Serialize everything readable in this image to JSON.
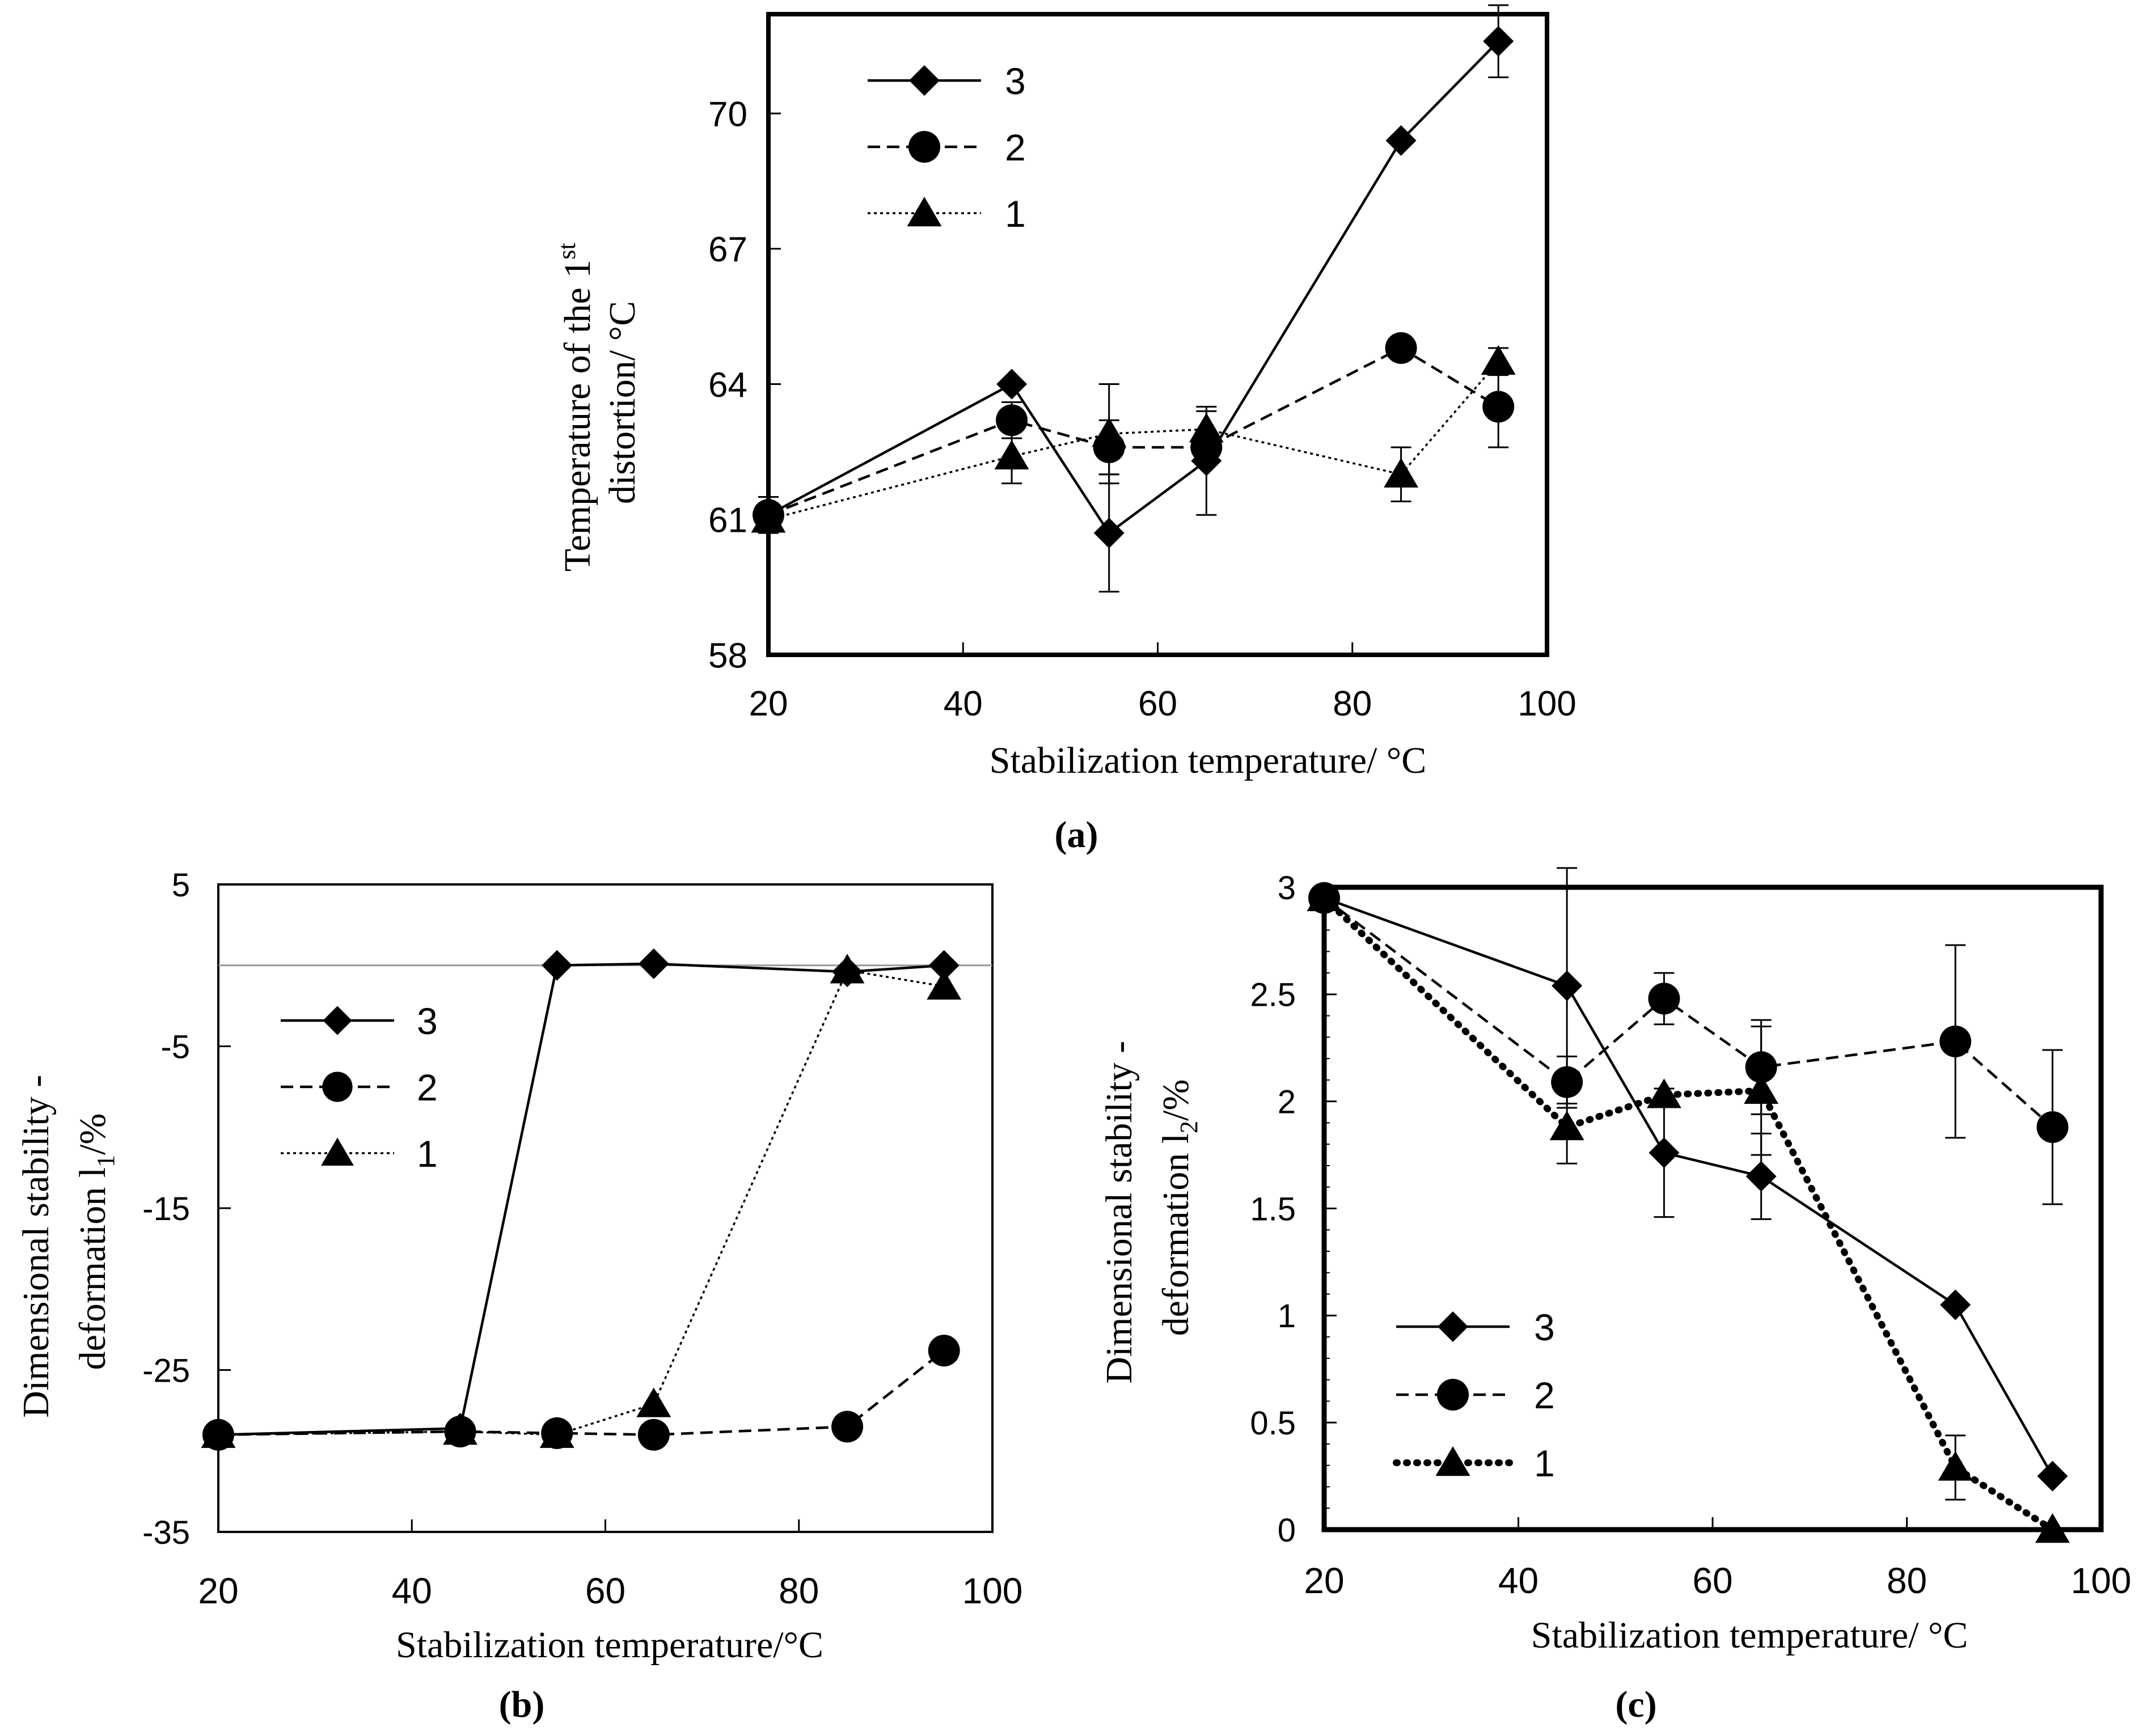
{
  "chart_data": [
    {
      "panel": "a",
      "type": "line",
      "caption": "(a)",
      "xlabel": "Stabilization temperature/ °C",
      "ylabel_lines": [
        "Temperature of the 1st",
        "distortion/ °C"
      ],
      "ylabel_line1": {
        "text": "Temperature of the 1",
        "sup": "st"
      },
      "ylabel_line2": "distortion/ °C",
      "xlim": [
        20,
        100
      ],
      "ylim": [
        58,
        72.2
      ],
      "xticks": [
        20,
        40,
        60,
        80,
        100
      ],
      "yticks": [
        58,
        61,
        64,
        67,
        70
      ],
      "tick_labels_x": [
        "20",
        "40",
        "60",
        "80",
        "100"
      ],
      "tick_labels_y": [
        "58",
        "61",
        "64",
        "67",
        "70"
      ],
      "legend": [
        "3",
        "2",
        "1"
      ],
      "legend_position": "top-left",
      "grid": false,
      "x": [
        20,
        45,
        55,
        65,
        85,
        95
      ],
      "series": [
        {
          "name": "3",
          "marker": "diamond",
          "line": "solid",
          "values": [
            61.1,
            64.0,
            60.7,
            62.3,
            69.4,
            71.6
          ],
          "err": [
            0.4,
            0,
            1.3,
            1.2,
            0,
            0.8
          ]
        },
        {
          "name": "2",
          "marker": "circle",
          "line": "dashed",
          "values": [
            61.1,
            63.2,
            62.6,
            62.6,
            64.8,
            63.5
          ],
          "err": [
            0,
            0.4,
            0.6,
            0,
            0,
            0.9
          ]
        },
        {
          "name": "1",
          "marker": "triangle",
          "line": "dotted",
          "values": [
            61.0,
            62.4,
            62.9,
            63.0,
            62.0,
            64.5
          ],
          "err": [
            0,
            0.6,
            1.1,
            0.4,
            0.6,
            0.3
          ]
        }
      ]
    },
    {
      "panel": "b",
      "type": "line",
      "caption": "(b)",
      "xlabel": "Stabilization temperature/°C",
      "ylabel_lines": [
        "Dimensional stability -",
        "deformation l1/%"
      ],
      "ylabel_line1": "Dimensional stability -",
      "ylabel_line2": {
        "text": "deformation l",
        "sub": "1",
        "tail": "/%"
      },
      "xlim": [
        20,
        100
      ],
      "ylim": [
        -35,
        5
      ],
      "xticks": [
        20,
        40,
        60,
        80,
        100
      ],
      "yticks": [
        -35,
        -25,
        -15,
        -5,
        5
      ],
      "tick_labels_x": [
        "20",
        "40",
        "60",
        "80",
        "100"
      ],
      "tick_labels_y": [
        "-35",
        "-25",
        "-15",
        "-5",
        "5"
      ],
      "reference_line": 0,
      "legend": [
        "3",
        "2",
        "1"
      ],
      "legend_position": "left",
      "grid": false,
      "x": [
        20,
        45,
        55,
        65,
        85,
        95
      ],
      "series": [
        {
          "name": "3",
          "marker": "diamond",
          "line": "solid",
          "values": [
            -29.0,
            -28.6,
            0.0,
            0.1,
            -0.4,
            0.0
          ]
        },
        {
          "name": "2",
          "marker": "circle",
          "line": "dashed",
          "values": [
            -29.0,
            -28.8,
            -28.9,
            -29.0,
            -28.5,
            -23.8
          ]
        },
        {
          "name": "1",
          "marker": "triangle",
          "line": "dotted",
          "values": [
            -29.0,
            -28.8,
            -29.0,
            -27.1,
            -0.3,
            -1.3
          ]
        }
      ]
    },
    {
      "panel": "c",
      "type": "line",
      "caption": "(c)",
      "xlabel": "Stabilization temperature/ °C",
      "ylabel_lines": [
        "Dimensional stability -",
        "deformation l2/%"
      ],
      "ylabel_line1": "Dimensional stability -",
      "ylabel_line2": {
        "text": "deformation l",
        "sub": "2",
        "tail": "/%"
      },
      "xlim": [
        20,
        100
      ],
      "ylim": [
        0,
        3
      ],
      "xticks": [
        20,
        40,
        60,
        80,
        100
      ],
      "yticks": [
        0,
        0.5,
        1,
        1.5,
        2,
        2.5,
        3
      ],
      "tick_labels_x": [
        "20",
        "40",
        "60",
        "80",
        "100"
      ],
      "tick_labels_y": [
        "0",
        "0.5",
        "1",
        "1.5",
        "2",
        "2.5",
        "3"
      ],
      "legend": [
        "3",
        "2",
        "1"
      ],
      "legend_position": "bottom-left",
      "grid": false,
      "x": [
        20,
        45,
        55,
        65,
        85,
        95
      ],
      "series": [
        {
          "name": "3",
          "marker": "diamond",
          "line": "solid",
          "values": [
            2.95,
            2.54,
            1.76,
            1.65,
            1.05,
            0.25
          ],
          "err": [
            0,
            0.55,
            0.3,
            0.2,
            0,
            0
          ]
        },
        {
          "name": "2",
          "marker": "circle",
          "line": "dashed",
          "values": [
            2.95,
            2.09,
            2.48,
            2.16,
            2.28,
            1.88
          ],
          "err": [
            0,
            0.12,
            0.12,
            0.22,
            0.45,
            0.36
          ]
        },
        {
          "name": "1",
          "marker": "triangle",
          "line": "dotted-heavy",
          "values": [
            2.95,
            1.88,
            2.03,
            2.05,
            0.29,
            0.0
          ],
          "err": [
            0,
            0.17,
            0,
            0.3,
            0.15,
            0
          ]
        }
      ]
    }
  ]
}
